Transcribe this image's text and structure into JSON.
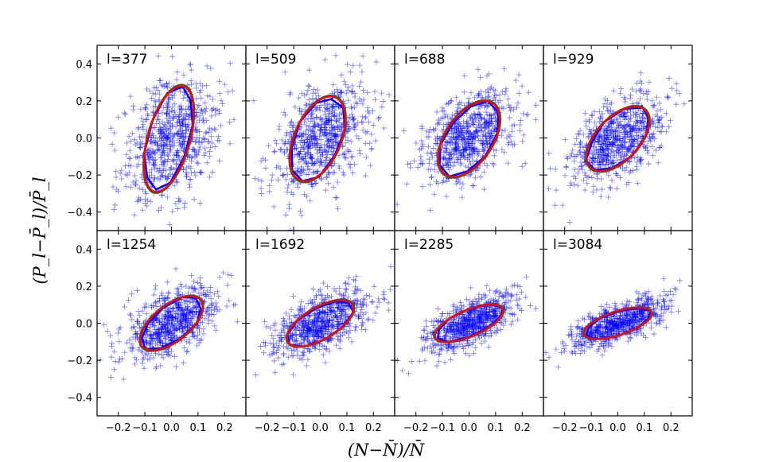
{
  "figure": {
    "xlabel": "(N−N̄)/N̄",
    "ylabel": "(P_l−P̄_l)/P̄_l"
  },
  "chart_data": {
    "type": "scatter",
    "layout": "2 rows x 4 columns, shared axes",
    "xlim": [
      -0.28,
      0.28
    ],
    "ylim": [
      -0.5,
      0.5
    ],
    "xticks": [
      -0.2,
      -0.1,
      0.0,
      0.1,
      0.2
    ],
    "xtick_labels": [
      "−0.2",
      "−0.1",
      "0.0",
      "0.1",
      "0.2"
    ],
    "yticks": [
      -0.4,
      -0.2,
      0.0,
      0.2,
      0.4
    ],
    "ytick_labels": [
      "−0.4",
      "−0.2",
      "0.0",
      "0.2",
      "0.4"
    ],
    "series_styles": {
      "scatter": {
        "marker": "+",
        "color": "#0000ff"
      },
      "contour_blue": {
        "color": "#0000ff"
      },
      "ellipse_green": {
        "color": "#008000"
      },
      "ellipse_red": {
        "color": "#ff0000"
      }
    },
    "panels": [
      {
        "label": "l=377",
        "x_std": 0.09,
        "y_std": 0.165,
        "corr": 0.32,
        "ellipse": {
          "cx": -0.01,
          "cy": -0.005,
          "a": 0.29,
          "b": 0.08,
          "angle_deg": 80
        }
      },
      {
        "label": "l=509",
        "x_std": 0.09,
        "y_std": 0.145,
        "corr": 0.38,
        "ellipse": {
          "cx": -0.01,
          "cy": -0.005,
          "a": 0.235,
          "b": 0.09,
          "angle_deg": 76
        }
      },
      {
        "label": "l=688",
        "x_std": 0.09,
        "y_std": 0.13,
        "corr": 0.45,
        "ellipse": {
          "cx": 0.0,
          "cy": -0.005,
          "a": 0.215,
          "b": 0.095,
          "angle_deg": 70
        }
      },
      {
        "label": "l=929",
        "x_std": 0.09,
        "y_std": 0.12,
        "corr": 0.5,
        "ellipse": {
          "cx": 0.0,
          "cy": -0.005,
          "a": 0.19,
          "b": 0.09,
          "angle_deg": 63
        }
      },
      {
        "label": "l=1254",
        "x_std": 0.09,
        "y_std": 0.1,
        "corr": 0.55,
        "ellipse": {
          "cx": 0.0,
          "cy": 0.0,
          "a": 0.17,
          "b": 0.08,
          "angle_deg": 55
        }
      },
      {
        "label": "l=1692",
        "x_std": 0.09,
        "y_std": 0.09,
        "corr": 0.6,
        "ellipse": {
          "cx": 0.0,
          "cy": 0.0,
          "a": 0.16,
          "b": 0.075,
          "angle_deg": 45
        }
      },
      {
        "label": "l=2285",
        "x_std": 0.09,
        "y_std": 0.08,
        "corr": 0.65,
        "ellipse": {
          "cx": 0.0,
          "cy": 0.0,
          "a": 0.15,
          "b": 0.065,
          "angle_deg": 35
        }
      },
      {
        "label": "l=3084",
        "x_std": 0.09,
        "y_std": 0.07,
        "corr": 0.7,
        "ellipse": {
          "cx": 0.0,
          "cy": 0.0,
          "a": 0.14,
          "b": 0.06,
          "angle_deg": 28
        }
      }
    ],
    "points_per_panel": 700
  }
}
